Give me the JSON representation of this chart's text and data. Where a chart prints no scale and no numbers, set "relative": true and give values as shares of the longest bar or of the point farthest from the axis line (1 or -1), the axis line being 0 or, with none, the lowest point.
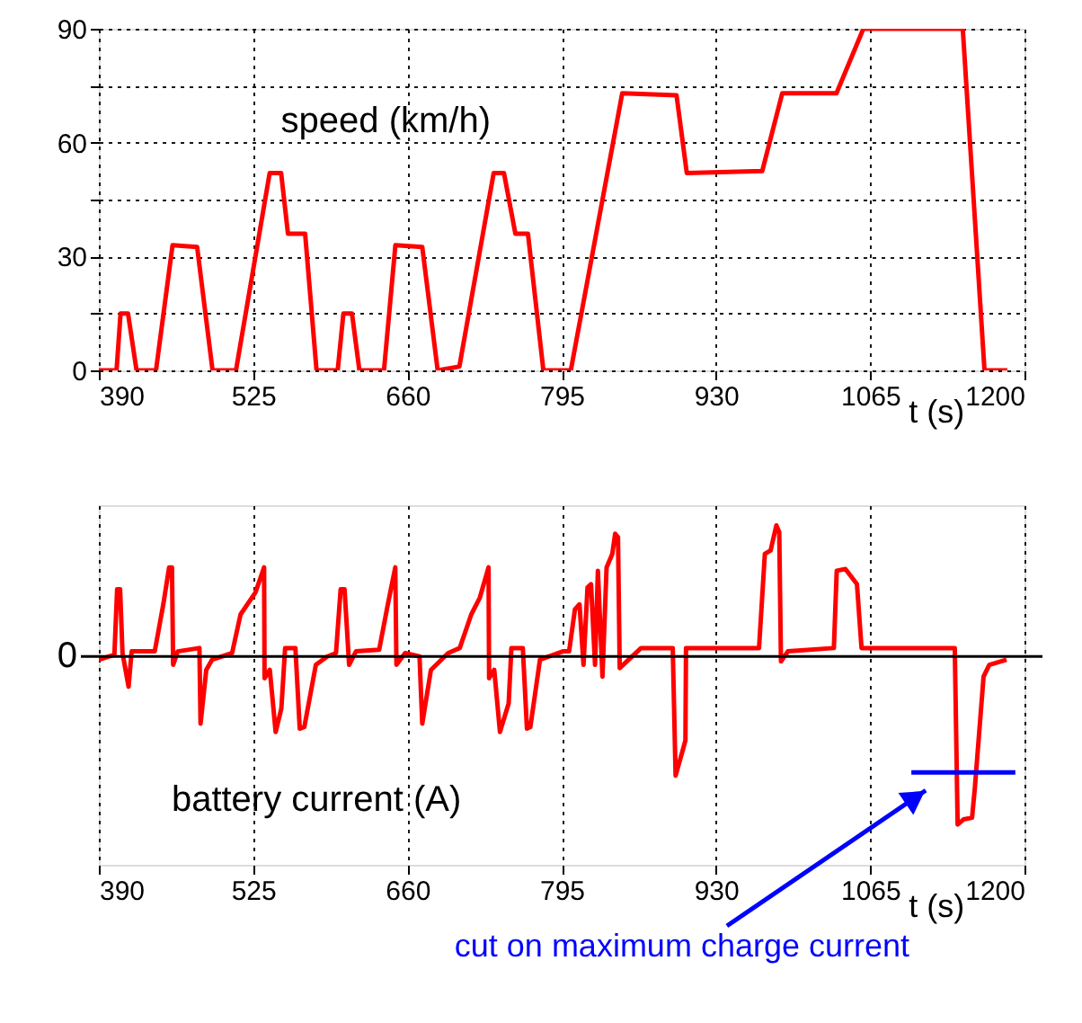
{
  "chart_data": [
    {
      "type": "line",
      "ylabel": "speed (km/h)",
      "xlabel": "t (s)",
      "grid": true,
      "xlim": [
        390,
        1200
      ],
      "xticks": [
        390,
        525,
        660,
        795,
        930,
        1065,
        1200
      ],
      "ylim": [
        0,
        90
      ],
      "yticks": [
        0,
        {
          "value": 15,
          "label": null
        },
        30,
        {
          "value": 45,
          "label": null
        },
        60,
        {
          "value": 75,
          "label": null
        },
        90
      ],
      "series": [
        {
          "color": "#ff0000",
          "x": [
            390,
            405.5,
            409,
            415.5,
            423,
            440,
            454.5,
            476,
            489.5,
            510,
            539.5,
            549.5,
            555.5,
            570.5,
            580.5,
            599,
            604,
            611.5,
            618,
            639.5,
            649.5,
            673,
            686.5,
            705.5,
            735.5,
            744.5,
            754.5,
            765.5,
            779,
            803,
            848,
            895.5,
            904.5,
            970.5,
            988,
            1035.5,
            1059,
            1146,
            1165,
            1185
          ],
          "values": [
            0,
            0,
            15,
            15,
            0,
            0,
            33,
            32.5,
            0,
            0,
            52,
            52,
            36,
            36,
            0,
            0,
            15,
            15,
            0,
            0,
            33,
            32.5,
            0,
            1,
            52,
            52,
            36,
            36,
            0,
            0,
            73,
            72.5,
            52,
            52.5,
            73,
            73,
            90,
            90,
            0,
            0
          ]
        }
      ]
    },
    {
      "type": "line",
      "ylabel": "battery current (A)",
      "xlabel": "t (s)",
      "grid": "x",
      "relative": true,
      "xlim": [
        390,
        1200
      ],
      "xticks": [
        390,
        525,
        660,
        795,
        930,
        1065,
        1200
      ],
      "ref_lines": [
        {
          "axis": "y",
          "value": 0,
          "label": "0",
          "color": "#000000"
        }
      ],
      "annotations": [
        "cut on maximum charge current"
      ],
      "series": [
        {
          "color": "#ff0000",
          "x": [
            390,
            403.6,
            406,
            408.6,
            410.7,
            416,
            418.7,
            438.9,
            446.4,
            451.5,
            454,
            455,
            459,
            478,
            479,
            484,
            489,
            506.6,
            514,
            527,
            534.6,
            535,
            539.6,
            544.7,
            549.7,
            553,
            562,
            565.8,
            569.8,
            579.9,
            590,
            597.5,
            601.6,
            605,
            609,
            615,
            635.3,
            642.9,
            649.4,
            650.4,
            658,
            670.6,
            673,
            680.6,
            695.7,
            705.8,
            715.9,
            723.4,
            731,
            731.5,
            736,
            741,
            748.6,
            751,
            761,
            764.6,
            767.6,
            776,
            796,
            801.5,
            806.6,
            810.6,
            814.1,
            817.6,
            820.7,
            824.2,
            826.7,
            830.7,
            834.3,
            839.3,
            841.8,
            844.3,
            845.8,
            851.9,
            864.5,
            892.2,
            894.7,
            903.3,
            903.8,
            967.7,
            972.8,
            977.8,
            982.9,
            985.4,
            986.9,
            992.9,
            1033.2,
            1035.7,
            1043.3,
            1053.4,
            1057.4,
            1139,
            1141.5,
            1146.6,
            1154.1,
            1156.6,
            1164.2,
            1169.2,
            1184.3
          ],
          "values": [
            -0.02,
            0.01,
            0.4,
            0.4,
            0.02,
            -0.18,
            0.03,
            0.03,
            0.31,
            0.53,
            0.53,
            -0.05,
            0.03,
            0.05,
            -0.4,
            -0.08,
            -0.02,
            0.02,
            0.25,
            0.38,
            0.53,
            -0.13,
            -0.08,
            -0.45,
            -0.31,
            0.05,
            0.05,
            -0.43,
            -0.42,
            -0.05,
            0,
            0.02,
            0.4,
            0.4,
            -0.05,
            0.03,
            0.04,
            0.31,
            0.53,
            -0.05,
            0.02,
            0,
            -0.4,
            -0.08,
            0.02,
            0.05,
            0.25,
            0.35,
            0.53,
            -0.13,
            -0.08,
            -0.45,
            -0.28,
            0.05,
            0.05,
            -0.43,
            -0.42,
            -0.02,
            0.03,
            0.03,
            0.28,
            0.31,
            -0.05,
            0.41,
            0.43,
            -0.05,
            0.51,
            -0.12,
            0.53,
            0.61,
            0.73,
            0.71,
            -0.07,
            -0.03,
            0.05,
            0.05,
            -0.71,
            -0.5,
            0.05,
            0.05,
            0.61,
            0.63,
            0.78,
            0.74,
            -0.03,
            0.03,
            0.05,
            0.51,
            0.52,
            0.43,
            0.05,
            0.05,
            -1,
            -0.97,
            -0.96,
            -0.78,
            -0.12,
            -0.05,
            -0.02
          ]
        },
        {
          "type": "line",
          "color": "#0000ff",
          "x": [
            1101,
            1192
          ],
          "values": [
            -0.69,
            -0.69
          ]
        }
      ]
    }
  ]
}
